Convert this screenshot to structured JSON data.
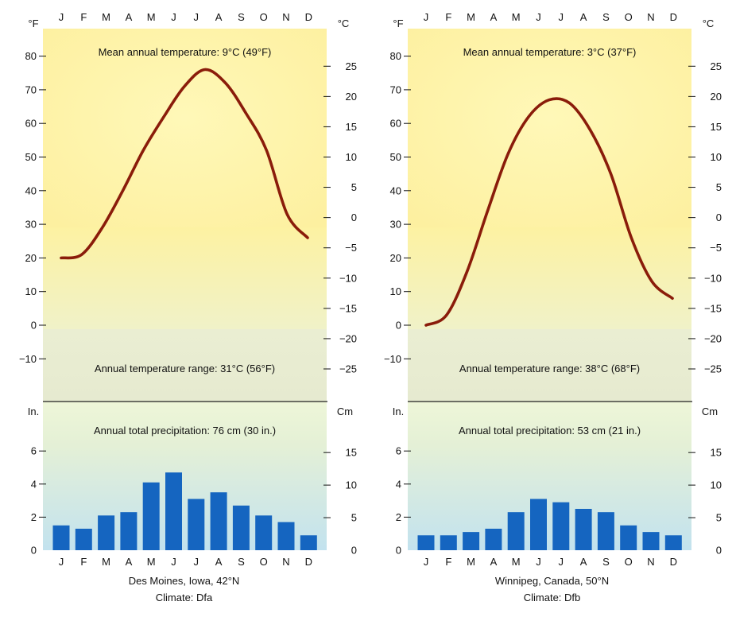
{
  "colors": {
    "temp_line": "#8a1c0a",
    "bar": "#1565c0",
    "warm_top": "#fff3a6",
    "cold": "#e6ead2",
    "precip_top": "#eaf4d6",
    "precip_bottom": "#bfe0ee"
  },
  "chart_data": [
    {
      "type": "line+bar",
      "months": [
        "J",
        "F",
        "M",
        "A",
        "M",
        "J",
        "J",
        "A",
        "S",
        "O",
        "N",
        "D"
      ],
      "temperature": {
        "left_unit": "°F",
        "right_unit": "°C",
        "f_ticks": [
          -10,
          0,
          10,
          20,
          30,
          40,
          50,
          60,
          70,
          80
        ],
        "c_ticks": [
          -25,
          -20,
          -15,
          -10,
          -5,
          0,
          5,
          10,
          15,
          20,
          25
        ],
        "f_ticks_labels": [
          "−10",
          "0",
          "10",
          "20",
          "30",
          "40",
          "50",
          "60",
          "70",
          "80"
        ],
        "c_ticks_labels": [
          "−25",
          "−20",
          "−15",
          "−10",
          "−5",
          "0",
          "5",
          "10",
          "15",
          "20",
          "25"
        ],
        "ylim_f": [
          -22,
          87
        ],
        "values_f": [
          20,
          21,
          29,
          40,
          52,
          62,
          71,
          76,
          72,
          63,
          52,
          33,
          26
        ]
      },
      "precipitation": {
        "left_unit": "In.",
        "right_unit": "Cm",
        "in_ticks": [
          0,
          2,
          4,
          6
        ],
        "cm_ticks": [
          0,
          5,
          10,
          15
        ],
        "values_in": [
          1.5,
          1.3,
          2.1,
          2.3,
          4.1,
          4.7,
          3.1,
          3.5,
          2.7,
          2.1,
          1.7,
          0.9
        ]
      },
      "annotations": {
        "mean": "Mean annual temperature: 9°C (49°F)",
        "range": "Annual temperature range: 31°C (56°F)",
        "precip": "Annual total precipitation: 76 cm (30 in.)"
      },
      "location": "Des Moines, Iowa, 42°N",
      "climate": "Climate: Dfa"
    },
    {
      "type": "line+bar",
      "months": [
        "J",
        "F",
        "M",
        "A",
        "M",
        "J",
        "J",
        "A",
        "S",
        "O",
        "N",
        "D"
      ],
      "temperature": {
        "left_unit": "°F",
        "right_unit": "°C",
        "f_ticks": [
          -10,
          0,
          10,
          20,
          30,
          40,
          50,
          60,
          70,
          80
        ],
        "c_ticks": [
          -25,
          -20,
          -15,
          -10,
          -5,
          0,
          5,
          10,
          15,
          20,
          25
        ],
        "f_ticks_labels": [
          "−10",
          "0",
          "10",
          "20",
          "30",
          "40",
          "50",
          "60",
          "70",
          "80"
        ],
        "c_ticks_labels": [
          "−25",
          "−20",
          "−15",
          "−10",
          "−5",
          "0",
          "5",
          "10",
          "15",
          "20",
          "25"
        ],
        "ylim_f": [
          -22,
          87
        ],
        "values_f": [
          0,
          3,
          16,
          34,
          51,
          62,
          67,
          66,
          58,
          45,
          26,
          13,
          8
        ]
      },
      "precipitation": {
        "left_unit": "In.",
        "right_unit": "Cm",
        "in_ticks": [
          0,
          2,
          4,
          6
        ],
        "cm_ticks": [
          0,
          5,
          10,
          15
        ],
        "values_in": [
          0.9,
          0.9,
          1.1,
          1.3,
          2.3,
          3.1,
          2.9,
          2.5,
          2.3,
          1.5,
          1.1,
          0.9
        ]
      },
      "annotations": {
        "mean": "Mean annual temperature: 3°C (37°F)",
        "range": "Annual temperature range: 38°C (68°F)",
        "precip": "Annual total precipitation: 53 cm (21 in.)"
      },
      "location": "Winnipeg, Canada, 50°N",
      "climate": "Climate: Dfb"
    }
  ]
}
